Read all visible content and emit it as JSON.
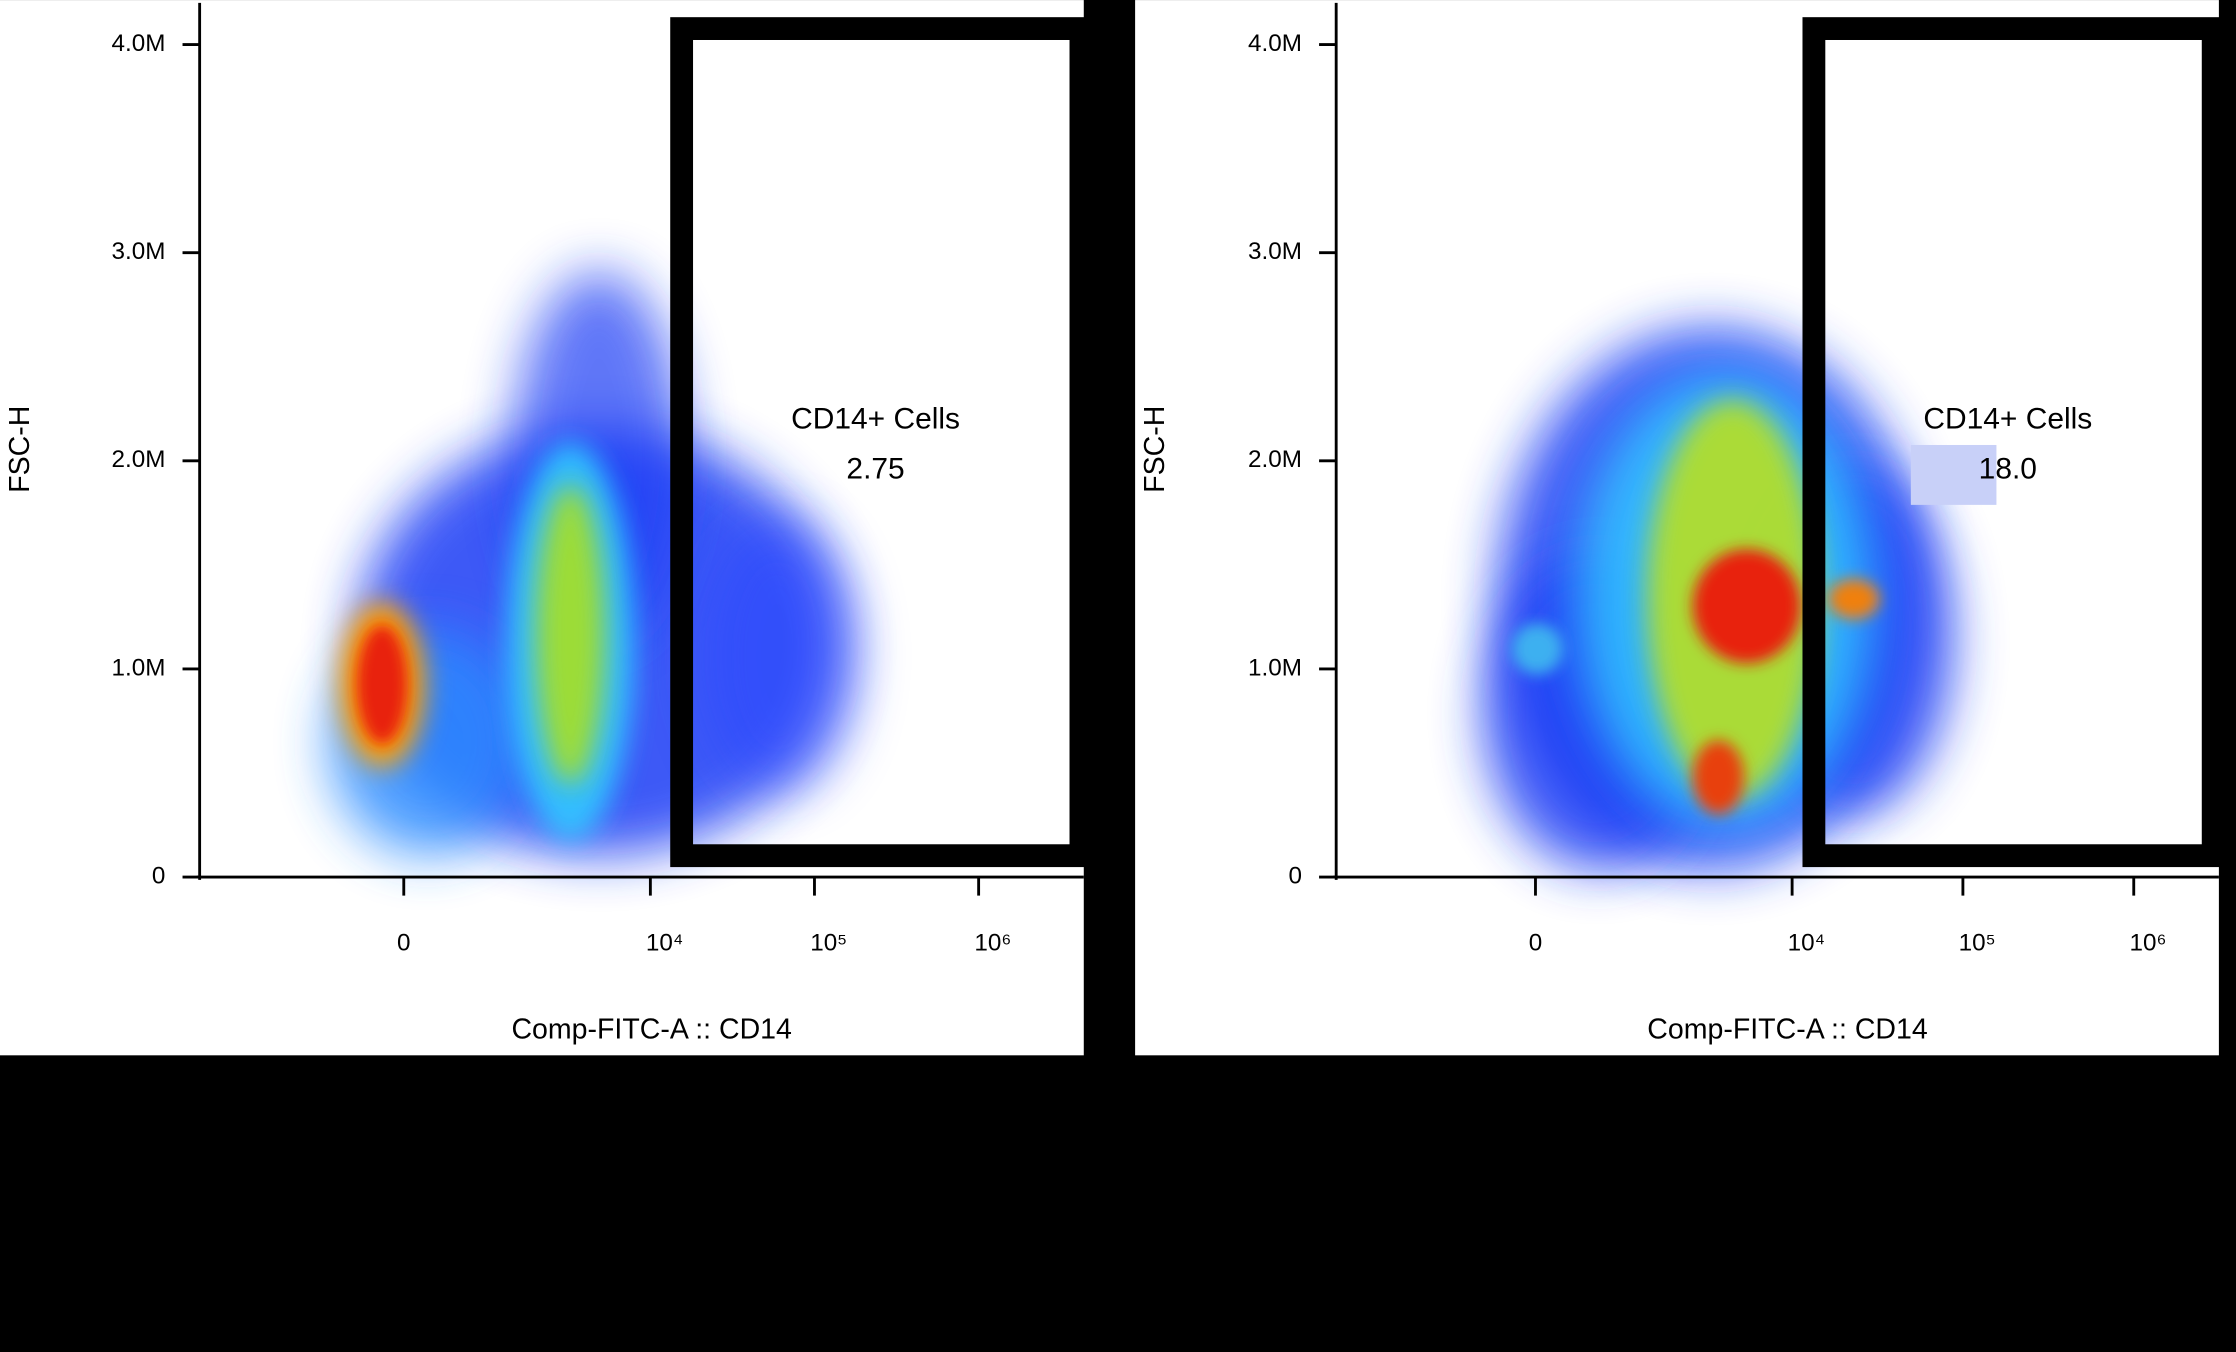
{
  "chart_data": [
    {
      "type": "density",
      "y_label": "FSC-H",
      "x_label": "Comp-FITC-A :: CD14",
      "xscale": "biexponential",
      "xlim": [
        -5500,
        4370000
      ],
      "xticks": [
        0,
        {
          "value": 10000,
          "label": "10⁴"
        },
        {
          "value": 100000,
          "label": "10⁵"
        },
        {
          "value": 1000000,
          "label": "10⁶"
        }
      ],
      "ylim": [
        0,
        4200000
      ],
      "yticks": [
        0,
        {
          "value": 1000000,
          "label": "1.0M"
        },
        {
          "value": 2000000,
          "label": "2.0M"
        },
        {
          "value": 3000000,
          "label": "3.0M"
        },
        {
          "value": 4000000,
          "label": "4.0M"
        }
      ],
      "gate": {
        "name": "CD14+ Cells",
        "values": [
          2.75
        ]
      }
    },
    {
      "type": "density",
      "y_label": "FSC-H",
      "x_label": "Comp-FITC-A :: CD14",
      "xscale": "biexponential",
      "xlim": [
        -4600,
        3150000
      ],
      "xticks": [
        0,
        {
          "value": 10000,
          "label": "10⁴"
        },
        {
          "value": 100000,
          "label": "10⁵"
        },
        {
          "value": 1000000,
          "label": "10⁶"
        }
      ],
      "ylim": [
        0,
        4200000
      ],
      "yticks": [
        0,
        {
          "value": 1000000,
          "label": "1.0M"
        },
        {
          "value": 2000000,
          "label": "2.0M"
        },
        {
          "value": 3000000,
          "label": "3.0M"
        },
        {
          "value": 4000000,
          "label": "4.0M"
        }
      ],
      "gate": {
        "name": "CD14+ Cells",
        "values": [
          18
        ],
        "value_labels": [
          "18.0"
        ]
      }
    }
  ]
}
